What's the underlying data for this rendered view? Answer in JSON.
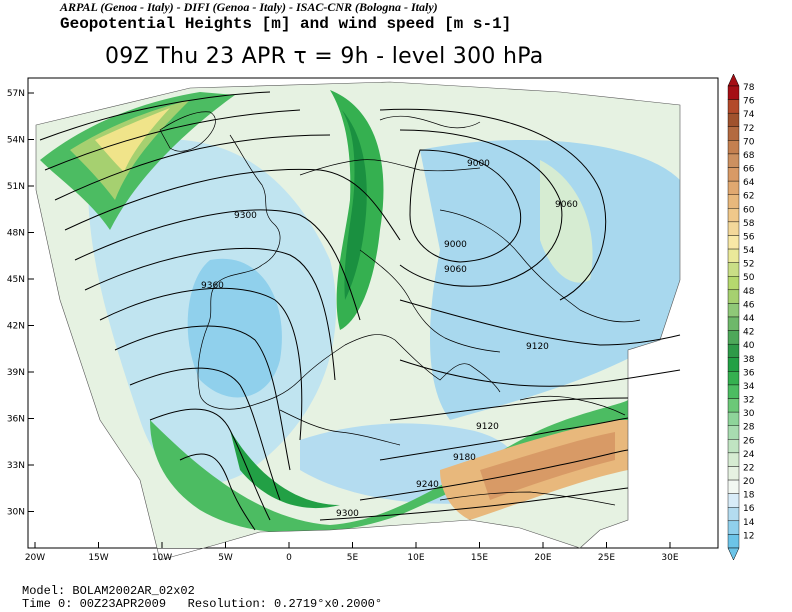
{
  "header": {
    "institutions": "ARPAL (Genoa - Italy)  -  DIFI (Genoa - Italy)  -  ISAC-CNR (Bologna - Italy)",
    "variable_title": "Geopotential Heights [m] and wind speed [m s-1]",
    "run_line": "09Z Thu 23 APR  τ = 9h  -  level 300 hPa"
  },
  "map": {
    "lat_ticks": [
      "57N",
      "54N",
      "51N",
      "48N",
      "45N",
      "42N",
      "39N",
      "36N",
      "33N",
      "30N"
    ],
    "lon_ticks": [
      "20W",
      "15W",
      "10W",
      "5W",
      "0",
      "5E",
      "10E",
      "15E",
      "20E",
      "25E",
      "30E"
    ],
    "contour_labels": [
      "9000",
      "9060",
      "9000",
      "9060",
      "9300",
      "9360",
      "9120",
      "9120",
      "9180",
      "9240",
      "9300"
    ]
  },
  "legend": {
    "values": [
      "78",
      "76",
      "74",
      "72",
      "70",
      "68",
      "66",
      "64",
      "62",
      "60",
      "58",
      "56",
      "54",
      "52",
      "50",
      "48",
      "46",
      "44",
      "42",
      "40",
      "38",
      "36",
      "34",
      "32",
      "30",
      "28",
      "26",
      "24",
      "22",
      "20",
      "18",
      "16",
      "14",
      "12"
    ],
    "colors": [
      "#a50f15",
      "#b34a2a",
      "#a0522d",
      "#b36a40",
      "#c48050",
      "#cc9060",
      "#d89a66",
      "#e0a870",
      "#e8b87c",
      "#f0c88a",
      "#f3d89a",
      "#f8e8a6",
      "#eae99a",
      "#c9de86",
      "#b5d86e",
      "#a6d070",
      "#8fc878",
      "#6eb86a",
      "#4ea85a",
      "#2e9a48",
      "#22a045",
      "#35b050",
      "#4cbc62",
      "#6cc878",
      "#8ed49a",
      "#a8dcb0",
      "#c0e4c2",
      "#d6ecd2",
      "#e6f2e2",
      "#f2f8f2",
      "#d8ecf8",
      "#b4dcf0",
      "#90d0ec",
      "#6cc4e8"
    ]
  },
  "footer": {
    "model": "Model: BOLAM2002AR_02x02",
    "time": "Time 0: 00Z23APR2009",
    "resolution": "Resolution: 0.2719°x0.2000°"
  }
}
